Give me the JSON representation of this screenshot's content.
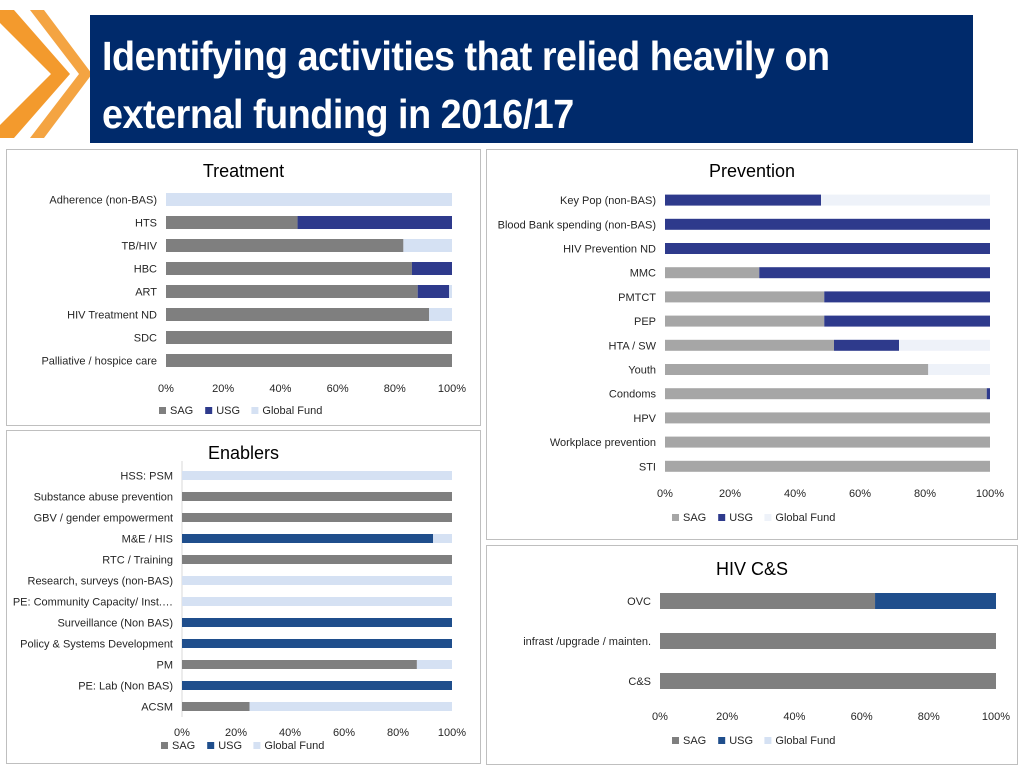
{
  "slide": {
    "title_line1": "Identifying activities that relied heavily on",
    "title_line2": "external funding in 2016/17"
  },
  "colors": {
    "title_bg": "#002a6b",
    "chevron": "#f39a2d",
    "sag": "#7f7f7f",
    "sag_light": "#a6a6a6",
    "usg": "#2e3a8c",
    "usg_blue": "#1f4e8c",
    "global_fund": "#d5e1f3",
    "global_fund_light": "#eef2f9"
  },
  "chart_data": [
    {
      "id": "treatment",
      "type": "bar",
      "orientation": "horizontal",
      "stacked": "percent",
      "title": "Treatment",
      "categories": [
        "Adherence (non-BAS)",
        "HTS",
        "TB/HIV",
        "HBC",
        "ART",
        "HIV Treatment ND",
        "SDC",
        "Palliative / hospice care"
      ],
      "series": [
        {
          "name": "SAG",
          "color": "#7f7f7f",
          "values": [
            0,
            46,
            83,
            86,
            88,
            92,
            100,
            100
          ]
        },
        {
          "name": "USG",
          "color": "#2e3a8c",
          "values": [
            0,
            54,
            0,
            14,
            11,
            0,
            0,
            0
          ]
        },
        {
          "name": "Global Fund",
          "color": "#d5e1f3",
          "values": [
            100,
            0,
            17,
            0,
            1,
            8,
            0,
            0
          ]
        }
      ],
      "xticks": [
        "0%",
        "20%",
        "40%",
        "60%",
        "80%",
        "100%"
      ],
      "xlim": [
        0,
        100
      ],
      "legend": "bottom"
    },
    {
      "id": "prevention",
      "type": "bar",
      "orientation": "horizontal",
      "stacked": "percent",
      "title": "Prevention",
      "categories": [
        "Key Pop (non-BAS)",
        "Blood Bank spending (non-BAS)",
        "HIV Prevention ND",
        "MMC",
        "PMTCT",
        "PEP",
        "HTA / SW",
        "Youth",
        "Condoms",
        "HPV",
        "Workplace prevention",
        "STI"
      ],
      "series": [
        {
          "name": "SAG",
          "color": "#a6a6a6",
          "values": [
            0,
            0,
            0,
            29,
            49,
            49,
            52,
            81,
            99,
            100,
            100,
            100
          ]
        },
        {
          "name": "USG",
          "color": "#2e3a8c",
          "values": [
            48,
            100,
            100,
            71,
            51,
            51,
            20,
            0,
            1,
            0,
            0,
            0
          ]
        },
        {
          "name": "Global Fund",
          "color": "#eef2f9",
          "values": [
            52,
            0,
            0,
            0,
            0,
            0,
            28,
            19,
            0,
            0,
            0,
            0
          ]
        }
      ],
      "xticks": [
        "0%",
        "20%",
        "40%",
        "60%",
        "80%",
        "100%"
      ],
      "xlim": [
        0,
        100
      ],
      "legend": "bottom"
    },
    {
      "id": "enablers",
      "type": "bar",
      "orientation": "horizontal",
      "stacked": "percent",
      "title": "Enablers",
      "categories": [
        "HSS: PSM",
        "Substance abuse prevention",
        "GBV / gender empowerment",
        "M&E / HIS",
        "RTC / Training",
        "Research, surveys (non-BAS)",
        "PE: Community Capacity/ Inst.…",
        "Surveillance (Non BAS)",
        "Policy & Systems Development",
        "PM",
        "PE: Lab (Non BAS)",
        "ACSM"
      ],
      "series": [
        {
          "name": "SAG",
          "color": "#7f7f7f",
          "values": [
            0,
            100,
            100,
            0,
            100,
            0,
            0,
            0,
            0,
            87,
            0,
            25
          ]
        },
        {
          "name": "USG",
          "color": "#1f4e8c",
          "values": [
            0,
            0,
            0,
            93,
            0,
            0,
            0,
            100,
            100,
            0,
            100,
            0
          ]
        },
        {
          "name": "Global Fund",
          "color": "#d5e1f3",
          "values": [
            100,
            0,
            0,
            7,
            0,
            100,
            100,
            0,
            0,
            13,
            0,
            75
          ]
        }
      ],
      "xticks": [
        "0%",
        "20%",
        "40%",
        "60%",
        "80%",
        "100%"
      ],
      "xlim": [
        0,
        100
      ],
      "legend": "bottom"
    },
    {
      "id": "hivcs",
      "type": "bar",
      "orientation": "horizontal",
      "stacked": "percent",
      "title": "HIV C&S",
      "categories": [
        "OVC",
        "infrast /upgrade / mainten.",
        "C&S"
      ],
      "series": [
        {
          "name": "SAG",
          "color": "#7f7f7f",
          "values": [
            64,
            100,
            100
          ]
        },
        {
          "name": "USG",
          "color": "#1f4e8c",
          "values": [
            36,
            0,
            0
          ]
        },
        {
          "name": "Global Fund",
          "color": "#d5e1f3",
          "values": [
            0,
            0,
            0
          ]
        }
      ],
      "xticks": [
        "0%",
        "20%",
        "40%",
        "60%",
        "80%",
        "100%"
      ],
      "xlim": [
        0,
        100
      ],
      "legend": "bottom"
    }
  ]
}
